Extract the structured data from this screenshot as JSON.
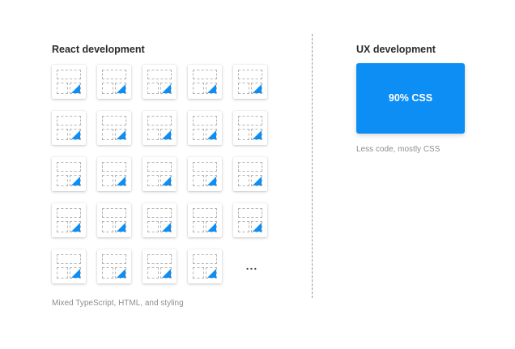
{
  "react": {
    "title": "React development",
    "caption": "Mixed TypeScript, HTML, and styling",
    "tile_count": 24,
    "more_indicator": "..."
  },
  "ux": {
    "title": "UX development",
    "box_label": "90% CSS",
    "caption": "Less code, mostly CSS"
  },
  "colors": {
    "accent": "#0d8ef5",
    "heading": "#2b2b2b",
    "caption": "#8f8f8f"
  }
}
